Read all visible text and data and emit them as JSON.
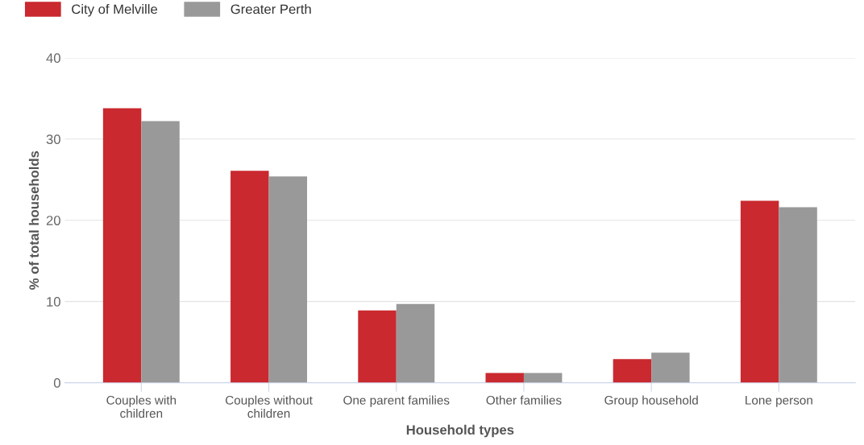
{
  "chart_data": {
    "type": "bar",
    "xlabel": "Household types",
    "ylabel": "% of total households",
    "categories": [
      "Couples with\nchildren",
      "Couples without\nchildren",
      "One parent families",
      "Other families",
      "Group household",
      "Lone person"
    ],
    "series": [
      {
        "name": "City of Melville",
        "color": "#c9292f",
        "values": [
          33.8,
          26.1,
          8.9,
          1.2,
          2.9,
          22.4
        ]
      },
      {
        "name": "Greater Perth",
        "color": "#999999",
        "values": [
          32.2,
          25.4,
          9.7,
          1.2,
          3.7,
          21.6
        ]
      }
    ],
    "ylim": [
      0,
      40
    ],
    "yticks": [
      0,
      10,
      20,
      30,
      40
    ],
    "grid": "y",
    "legend": "top left"
  }
}
